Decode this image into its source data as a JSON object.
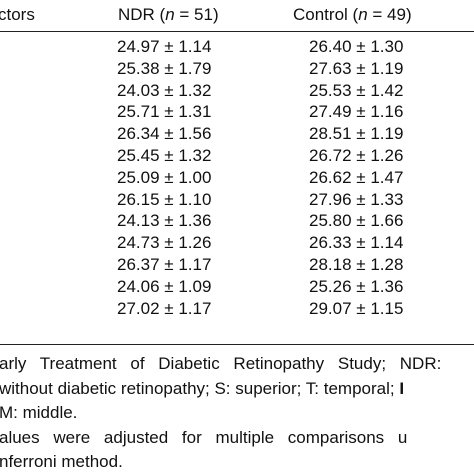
{
  "table": {
    "headers": {
      "factors": "ctors",
      "ndr_prefix": "NDR (",
      "ndr_n": "n",
      "ndr_suffix": " = 51)",
      "control_prefix": "Control (",
      "control_n": "n",
      "control_suffix": " = 49)"
    },
    "rows": [
      {
        "ndr": "24.97 ± 1.14",
        "control": "26.40 ± 1.30"
      },
      {
        "ndr": "25.38 ± 1.79",
        "control": "27.63 ± 1.19"
      },
      {
        "ndr": "24.03 ± 1.32",
        "control": "25.53 ± 1.42"
      },
      {
        "ndr": "25.71 ± 1.31",
        "control": "27.49 ± 1.16"
      },
      {
        "ndr": "26.34 ± 1.56",
        "control": "28.51 ± 1.19"
      },
      {
        "ndr": "25.45 ± 1.32",
        "control": "26.72 ± 1.26"
      },
      {
        "ndr": "25.09 ± 1.00",
        "control": "26.62 ± 1.47"
      },
      {
        "ndr": "26.15 ± 1.10",
        "control": "27.96 ± 1.33"
      },
      {
        "ndr": "24.13 ± 1.36",
        "control": "25.80 ± 1.66"
      },
      {
        "ndr": "24.73 ± 1.26",
        "control": "26.33 ± 1.14"
      },
      {
        "ndr": "26.37 ± 1.17",
        "control": "28.18 ± 1.28"
      },
      {
        "ndr": "24.06 ± 1.09",
        "control": "25.26 ± 1.36"
      },
      {
        "ndr": "27.02 ± 1.17",
        "control": "29.07 ± 1.15"
      }
    ]
  },
  "footnotes": {
    "line1": "arly Treatment of Diabetic Retinopathy Study; NDR:",
    "line2_text": "without diabetic retinopathy; S: superior; T: temporal;",
    "line2_bold": "I",
    "line3": "M: middle.",
    "line4": "alues were adjusted for multiple comparisons u",
    "line5": "nferroni method."
  }
}
